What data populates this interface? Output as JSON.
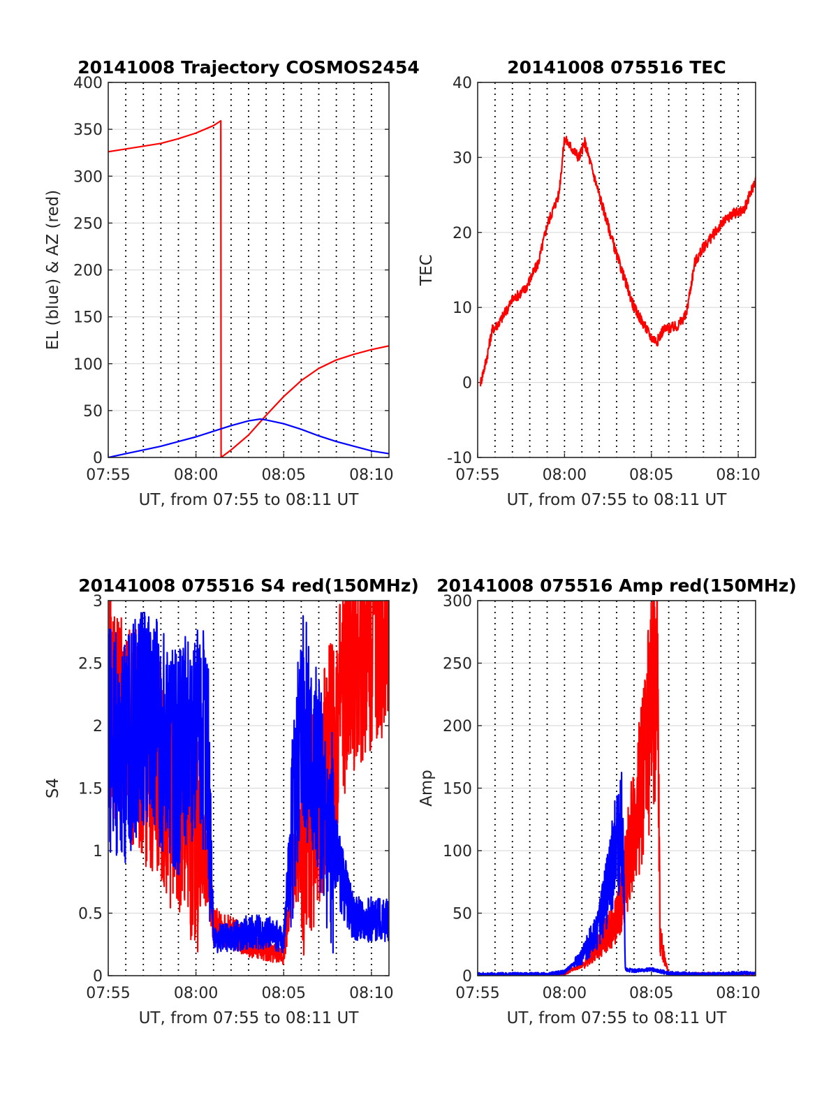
{
  "chart_data": [
    {
      "type": "line",
      "title": "20141008 Trajectory COSMOS2454",
      "xlabel": "UT, from 07:55 to 08:11 UT",
      "ylabel": "EL (blue) & AZ (red)",
      "xlim": [
        "07:55",
        "08:11"
      ],
      "ylim": [
        0,
        400
      ],
      "xticks": [
        "07:55",
        "08:00",
        "08:05",
        "08:10"
      ],
      "yticks": [
        "0",
        "50",
        "100",
        "150",
        "200",
        "250",
        "300",
        "350",
        "400"
      ],
      "grid": true,
      "series": [
        {
          "color": "#ff0000",
          "x": [
            "07:55",
            "07:56",
            "07:57",
            "07:58",
            "07:59",
            "08:00",
            "08:01",
            "08:01:25",
            "08:01:26",
            "08:02",
            "08:03",
            "08:04",
            "08:05",
            "08:06",
            "08:07",
            "08:08",
            "08:09",
            "08:10",
            "08:11"
          ],
          "y": [
            326,
            329,
            332,
            335,
            340,
            346,
            354,
            359,
            0,
            8,
            24,
            45,
            65,
            82,
            95,
            104,
            110,
            115,
            119
          ]
        },
        {
          "color": "#0000ff",
          "x": [
            "07:55",
            "07:56",
            "07:57",
            "07:58",
            "07:59",
            "08:00",
            "08:01",
            "08:02",
            "08:03",
            "08:03:40",
            "08:04",
            "08:05",
            "08:06",
            "08:07",
            "08:08",
            "08:09",
            "08:10",
            "08:11"
          ],
          "y": [
            0,
            4,
            8,
            12,
            17,
            22,
            28,
            34,
            39,
            41,
            40,
            36,
            30,
            23,
            17,
            12,
            7,
            4
          ]
        }
      ]
    },
    {
      "type": "line",
      "title": "20141008 075516 TEC",
      "xlabel": "UT, from 07:55 to 08:11 UT",
      "ylabel": "TEC",
      "xlim": [
        "07:55",
        "08:11"
      ],
      "ylim": [
        -10,
        40
      ],
      "xticks": [
        "07:55",
        "08:00",
        "08:05",
        "08:10"
      ],
      "yticks": [
        "-10",
        "0",
        "10",
        "20",
        "30",
        "40"
      ],
      "grid": true,
      "series": [
        {
          "color": "#ff0000",
          "x": [
            "07:55:10",
            "07:55:30",
            "07:55:50",
            "07:56:15",
            "07:57",
            "07:57:45",
            "07:58:30",
            "07:59",
            "07:59:40",
            "08:00",
            "08:00:30",
            "08:00:50",
            "08:01:10",
            "08:02",
            "08:03",
            "08:04",
            "08:05",
            "08:05:20",
            "08:05:40",
            "08:06:30",
            "08:07",
            "08:07:30",
            "08:08",
            "08:09",
            "08:09:40",
            "08:10:20",
            "08:11"
          ],
          "y": [
            0,
            3,
            7,
            8,
            11,
            12.5,
            16,
            21,
            25,
            32.5,
            31,
            30,
            32,
            25,
            17,
            10,
            6,
            5.5,
            7,
            7.5,
            9,
            16,
            18,
            21,
            22.5,
            23,
            27
          ]
        }
      ]
    },
    {
      "type": "line",
      "title": "20141008 075516 S4 red(150MHz)",
      "xlabel": "UT, from 07:55 to 08:11 UT",
      "ylabel": "S4",
      "xlim": [
        "07:55",
        "08:11"
      ],
      "ylim": [
        0,
        3
      ],
      "xticks": [
        "07:55",
        "08:00",
        "08:05",
        "08:10"
      ],
      "yticks": [
        "0",
        "0.5",
        "1",
        "1.5",
        "2",
        "2.5",
        "3"
      ],
      "grid": true,
      "series": [
        {
          "color": "#ff0000",
          "x": [
            "07:55",
            "07:56",
            "07:57",
            "07:58",
            "07:59",
            "08:00",
            "08:00:40",
            "08:01",
            "08:02",
            "08:03",
            "08:04",
            "08:05",
            "08:05:30",
            "08:06",
            "08:07",
            "08:08",
            "08:09",
            "08:10",
            "08:11"
          ],
          "y": [
            2.2,
            2.0,
            1.8,
            1.6,
            1.3,
            1.1,
            0.9,
            0.4,
            0.35,
            0.25,
            0.2,
            0.15,
            0.8,
            1.0,
            1.4,
            2.0,
            2.5,
            2.7,
            2.8
          ]
        },
        {
          "color": "#0000ff",
          "x": [
            "07:55",
            "07:56",
            "07:57",
            "07:58",
            "07:59",
            "08:00",
            "08:00:40",
            "08:01",
            "08:02",
            "08:03",
            "08:04",
            "08:05",
            "08:05:30",
            "08:06",
            "08:07",
            "08:08",
            "08:09",
            "08:10",
            "08:11"
          ],
          "y": [
            1.9,
            1.8,
            2.1,
            1.9,
            1.7,
            2.0,
            1.8,
            0.3,
            0.3,
            0.35,
            0.35,
            0.3,
            1.2,
            2.2,
            1.5,
            0.9,
            0.45,
            0.45,
            0.45
          ]
        }
      ]
    },
    {
      "type": "line",
      "title": "20141008 075516 Amp red(150MHz)",
      "xlabel": "UT, from 07:55 to 08:11 UT",
      "ylabel": "Amp",
      "xlim": [
        "07:55",
        "08:11"
      ],
      "ylim": [
        0,
        300
      ],
      "xticks": [
        "07:55",
        "08:00",
        "08:05",
        "08:10"
      ],
      "yticks": [
        "0",
        "50",
        "100",
        "150",
        "200",
        "250",
        "300"
      ],
      "grid": true,
      "series": [
        {
          "color": "#ff0000",
          "x": [
            "07:55",
            "07:59",
            "08:00",
            "08:01",
            "08:02",
            "08:03",
            "08:03:30",
            "08:04",
            "08:04:30",
            "08:05",
            "08:05:20",
            "08:05:30",
            "08:06",
            "08:08",
            "08:11"
          ],
          "y": [
            0,
            0,
            2,
            8,
            25,
            45,
            80,
            120,
            160,
            210,
            250,
            30,
            1,
            1,
            1
          ]
        },
        {
          "color": "#0000ff",
          "x": [
            "07:55",
            "07:59",
            "08:00",
            "08:01",
            "08:02",
            "08:02:40",
            "08:03",
            "08:03:20",
            "08:03:30",
            "08:04",
            "08:05",
            "08:06",
            "08:08",
            "08:10",
            "08:11"
          ],
          "y": [
            1,
            1,
            3,
            15,
            40,
            80,
            110,
            125,
            5,
            4,
            5,
            2,
            1,
            2,
            2
          ]
        }
      ]
    }
  ]
}
